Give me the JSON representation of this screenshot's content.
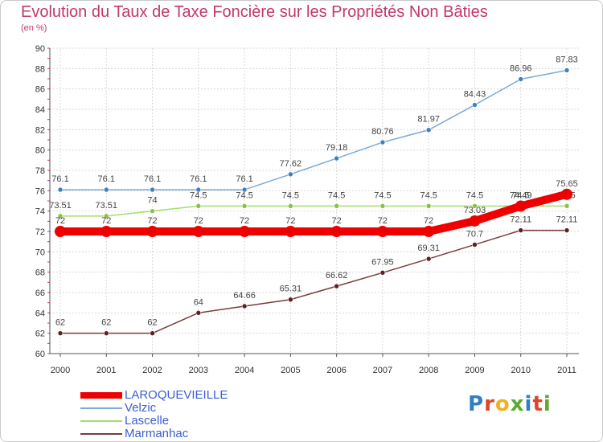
{
  "page": {
    "title": "Evolution du Taux de Taxe Foncière sur les Propriétés Non Bâties",
    "unit": "(en %)"
  },
  "logo": {
    "text": "Proxiti",
    "colors": [
      "#2f7fc1",
      "#e0452a",
      "#f0b21f",
      "#5caa2a",
      "#2f7fc1",
      "#e0452a",
      "#5caa2a"
    ]
  },
  "chart_data": {
    "type": "line",
    "title": "Evolution du Taux de Taxe Foncière sur les Propriétés Non Bâties",
    "ylabel": "(en %)",
    "xlabel": "",
    "ylim": [
      60,
      90
    ],
    "yticks": [
      60,
      62,
      64,
      66,
      68,
      70,
      72,
      74,
      76,
      78,
      80,
      82,
      84,
      86,
      88,
      90
    ],
    "x": [
      "2000",
      "2001",
      "2002",
      "2003",
      "2004",
      "2005",
      "2006",
      "2007",
      "2008",
      "2009",
      "2010",
      "2011"
    ],
    "grid": true,
    "legend": "bottom-left",
    "series": [
      {
        "name": "Velzic",
        "color": "#7aaad6",
        "point_color": "#3a82c4",
        "values": [
          76.1,
          76.1,
          76.1,
          76.1,
          76.1,
          77.62,
          79.18,
          80.76,
          81.97,
          84.43,
          86.96,
          87.83
        ],
        "labels": [
          "76.1",
          "76.1",
          "76.1",
          "76.1",
          "76.1",
          "77.62",
          "79.18",
          "80.76",
          "81.97",
          "84.43",
          "86.96",
          "87.83"
        ]
      },
      {
        "name": "Lascelle",
        "color": "#a6dd6b",
        "point_color": "#86c43d",
        "values": [
          73.51,
          73.51,
          74,
          74.5,
          74.5,
          74.5,
          74.5,
          74.5,
          74.5,
          74.5,
          74.5,
          74.5
        ],
        "labels": [
          "73.51",
          "73.51",
          "74",
          "74.5",
          "74.5",
          "74.5",
          "74.5",
          "74.5",
          "74.5",
          "74.5",
          "74.5",
          "74.5"
        ]
      },
      {
        "name": "Marmanhac",
        "color": "#7a3b3b",
        "point_color": "#5e1f1f",
        "values": [
          62,
          62,
          62,
          64,
          64.66,
          65.31,
          66.62,
          67.95,
          69.31,
          70.7,
          72.11,
          72.11
        ],
        "labels": [
          "62",
          "62",
          "62",
          "64",
          "64.66",
          "65.31",
          "66.62",
          "67.95",
          "69.31",
          "70.7",
          "72.11",
          "72.11"
        ]
      },
      {
        "name": "LAROQUEVIEILLE",
        "color": "#ee0000",
        "point_color": "#ee0000",
        "emphasis": true,
        "values": [
          72,
          72,
          72,
          72,
          72,
          72,
          72,
          72,
          72,
          73.03,
          74.49,
          75.65
        ],
        "labels": [
          "72",
          "72",
          "72",
          "72",
          "72",
          "72",
          "72",
          "72",
          "72",
          "73.03",
          "74.49",
          "75.65"
        ]
      }
    ],
    "legend_order": [
      "LAROQUEVIEILLE",
      "Velzic",
      "Lascelle",
      "Marmanhac"
    ]
  }
}
